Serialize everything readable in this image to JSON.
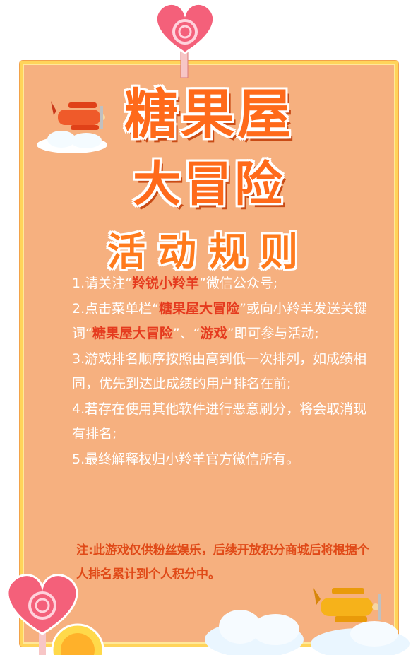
{
  "title": {
    "line1": "糖果屋",
    "line2": "大冒险"
  },
  "subtitle": "活动规则",
  "rules": [
    {
      "prefix": "1.请关注“",
      "highlight": "羚锐小羚羊",
      "suffix": "”微信公众号;"
    },
    {
      "prefix": "2.点击菜单栏“",
      "highlight": "糖果屋大冒险",
      "middle": "”或向小羚羊发送关键词“",
      "highlight2": "糖果屋大冒险",
      "suffix": "”、“",
      "highlight3": "游戏",
      "suffix2": "”即可参与活动;"
    },
    {
      "text": "3.游戏排名顺序按照由高到低一次排列，如成绩相同，优先到达此成绩的用户排名在前;"
    },
    {
      "text": "4.若存在使用其他软件进行恶意刷分，将会取消现有排名;"
    },
    {
      "text": "5.最终解释权归小羚羊官方微信所有。"
    }
  ],
  "note": "注:此游戏仅供粉丝娱乐，后续开放积分商城后将根据个人排名累计到个人积分中。",
  "colors": {
    "board": "#f6b07f",
    "frame": "#ffd45a",
    "title": "#ff6a1a",
    "highlight": "#e53a1e"
  },
  "icons": [
    "heart-lollipop-icon",
    "airplane-icon",
    "cloud-icon",
    "candy-icon"
  ]
}
